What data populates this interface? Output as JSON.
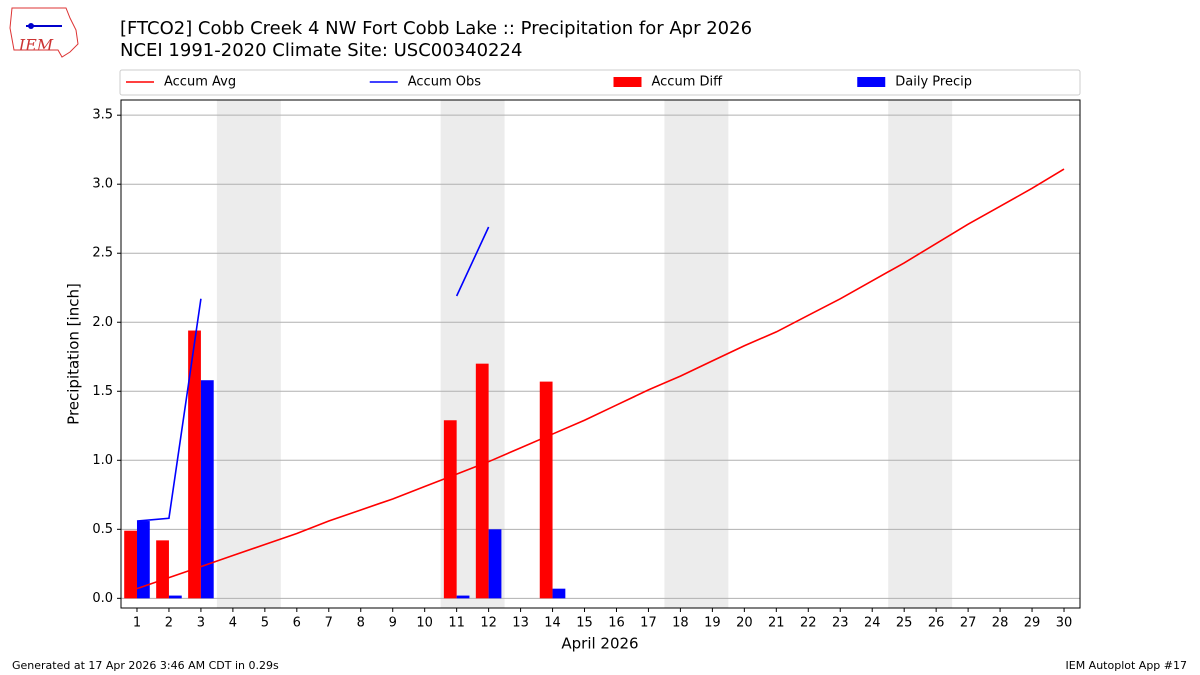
{
  "chart_data": {
    "type": "bar",
    "title": "[FTCO2] Cobb Creek 4 NW Fort Cobb Lake :: Precipitation for Apr 2026",
    "subtitle": "NCEI 1991-2020 Climate Site: USC00340224",
    "xlabel": "April 2026",
    "ylabel": "Precipitation [inch]",
    "x": [
      1,
      2,
      3,
      4,
      5,
      6,
      7,
      8,
      9,
      10,
      11,
      12,
      13,
      14,
      15,
      16,
      17,
      18,
      19,
      20,
      21,
      22,
      23,
      24,
      25,
      26,
      27,
      28,
      29,
      30
    ],
    "xticks": [
      1,
      2,
      3,
      4,
      5,
      6,
      7,
      8,
      9,
      10,
      11,
      12,
      13,
      14,
      15,
      16,
      17,
      18,
      19,
      20,
      21,
      22,
      23,
      24,
      25,
      26,
      27,
      28,
      29,
      30
    ],
    "xlim": [
      0.5,
      30.5
    ],
    "ylim": [
      -0.07,
      3.61
    ],
    "yticks": [
      {
        "value": 0,
        "label": "0.0"
      },
      0.5,
      {
        "value": 1,
        "label": "1.0"
      },
      1.5,
      {
        "value": 2,
        "label": "2.0"
      },
      2.5,
      {
        "value": 3,
        "label": "3.0"
      },
      3.5
    ],
    "grid": true,
    "shaded_spans": [
      [
        3.5,
        5.5
      ],
      [
        10.5,
        12.5
      ],
      [
        17.5,
        19.5
      ],
      [
        24.5,
        26.5
      ]
    ],
    "series": [
      {
        "name": "Accum Avg",
        "type": "line",
        "color": "#ff0000",
        "values": [
          0.07,
          0.15,
          0.23,
          0.31,
          0.39,
          0.47,
          0.56,
          0.64,
          0.72,
          0.81,
          0.9,
          0.99,
          1.09,
          1.19,
          1.29,
          1.4,
          1.51,
          1.61,
          1.72,
          1.83,
          1.93,
          2.05,
          2.17,
          2.3,
          2.43,
          2.57,
          2.71,
          2.84,
          2.97,
          3.11
        ]
      },
      {
        "name": "Accum Obs",
        "type": "line",
        "color": "#0000ff",
        "values": [
          0.56,
          0.58,
          2.17,
          null,
          null,
          null,
          null,
          null,
          null,
          null,
          2.19,
          2.69,
          null,
          null,
          null,
          null,
          null,
          null,
          null,
          null,
          null,
          null,
          null,
          null,
          null,
          null,
          null,
          null,
          null,
          null
        ]
      },
      {
        "name": "Accum Diff",
        "type": "bar",
        "color": "#ff0000",
        "offset": "left",
        "values": [
          0.49,
          0.42,
          1.94,
          0,
          0,
          0,
          0,
          0,
          0,
          0,
          1.29,
          1.7,
          0,
          1.57,
          0,
          0,
          0,
          0,
          0,
          0,
          0,
          0,
          0,
          0,
          0,
          0,
          0,
          0,
          0,
          0
        ]
      },
      {
        "name": "Daily Precip",
        "type": "bar",
        "color": "#0000ff",
        "offset": "right",
        "values": [
          0.56,
          0.02,
          1.58,
          0,
          0,
          0,
          0,
          0,
          0,
          0,
          0.02,
          0.5,
          0,
          0.07,
          0,
          0,
          0,
          0,
          0,
          0,
          0,
          0,
          0,
          0,
          0,
          0,
          0,
          0,
          0,
          0
        ]
      }
    ]
  },
  "logo_text": "IEM",
  "footer_left": "Generated at 17 Apr 2026 3:46 AM CDT in 0.29s",
  "footer_right": "IEM Autoplot App #17"
}
